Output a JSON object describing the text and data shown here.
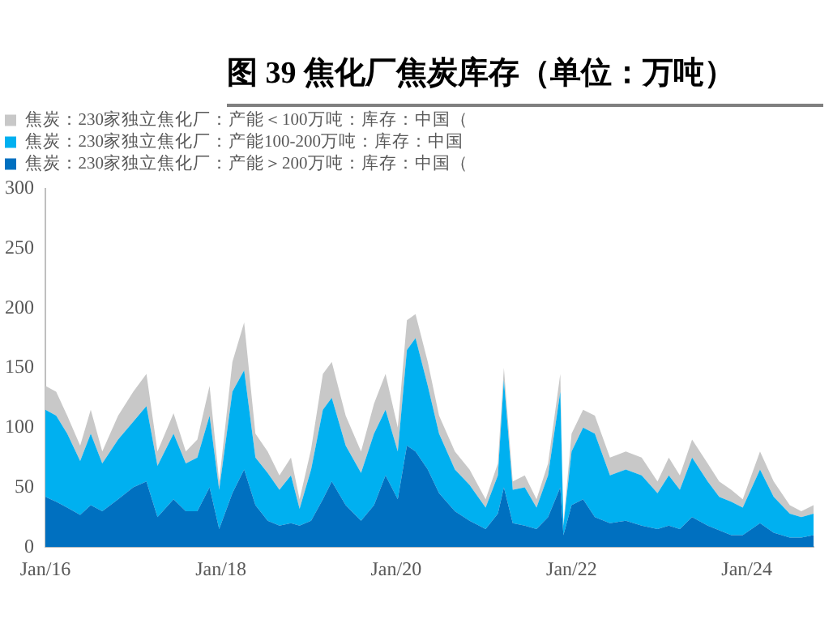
{
  "chart_data": {
    "type": "area",
    "title": "图 39 焦化厂焦炭库存（单位：万吨）",
    "stacked": true,
    "legend": "top",
    "x": [
      "2016-01-01",
      "2016-02-15",
      "2016-04-01",
      "2016-05-25",
      "2016-07-08",
      "2016-08-25",
      "2016-10-30",
      "2017-01-01",
      "2017-02-25",
      "2017-04-12",
      "2017-06-18",
      "2017-08-08",
      "2017-09-25",
      "2017-11-15",
      "2017-12-25",
      "2018-02-18",
      "2018-04-08",
      "2018-05-25",
      "2018-07-15",
      "2018-09-02",
      "2018-10-20",
      "2018-11-25",
      "2019-01-12",
      "2019-03-02",
      "2019-04-08",
      "2019-06-05",
      "2019-08-08",
      "2019-10-01",
      "2019-11-18",
      "2020-01-08",
      "2020-02-15",
      "2020-03-22",
      "2020-05-12",
      "2020-06-28",
      "2020-09-02",
      "2020-11-02",
      "2021-01-08",
      "2021-02-28",
      "2021-03-25",
      "2021-05-01",
      "2021-06-20",
      "2021-08-08",
      "2021-09-25",
      "2021-11-15",
      "2021-11-28",
      "2022-01-01",
      "2022-02-18",
      "2022-04-08",
      "2022-06-10",
      "2022-08-15",
      "2022-10-20",
      "2022-12-25",
      "2023-02-10",
      "2023-03-28",
      "2023-05-18",
      "2023-07-22",
      "2023-09-08",
      "2023-10-28",
      "2023-12-15",
      "2024-02-25",
      "2024-04-22",
      "2024-06-28",
      "2024-08-15",
      "2024-10-05"
    ],
    "series": [
      {
        "name": "焦炭：230家独立焦化厂：产能＞200万吨：库存：中国（",
        "color": "#0070c0",
        "values": [
          42,
          38,
          33,
          27,
          35,
          30,
          40,
          50,
          55,
          25,
          40,
          30,
          30,
          50,
          15,
          45,
          65,
          35,
          22,
          18,
          20,
          18,
          22,
          40,
          55,
          35,
          22,
          35,
          60,
          40,
          85,
          80,
          65,
          45,
          30,
          22,
          15,
          28,
          50,
          20,
          18,
          15,
          25,
          50,
          10,
          35,
          40,
          25,
          20,
          22,
          18,
          15,
          18,
          15,
          25,
          18,
          14,
          10,
          10,
          20,
          12,
          8,
          8,
          10
        ]
      },
      {
        "name": "焦炭：230家独立焦化厂：产能100-200万吨：库存：中国",
        "color": "#00b0f0",
        "values": [
          73,
          72,
          62,
          45,
          60,
          40,
          50,
          55,
          63,
          43,
          55,
          40,
          45,
          60,
          33,
          85,
          83,
          40,
          40,
          30,
          40,
          14,
          43,
          75,
          70,
          50,
          40,
          60,
          55,
          40,
          80,
          95,
          70,
          50,
          35,
          30,
          18,
          32,
          90,
          28,
          32,
          18,
          35,
          80,
          8,
          45,
          60,
          70,
          40,
          43,
          42,
          30,
          42,
          33,
          50,
          37,
          28,
          28,
          23,
          45,
          30,
          20,
          17,
          18
        ]
      },
      {
        "name": "焦炭：230家独立焦化厂：产能＜100万吨：库存：中国（",
        "color": "#c8c8c8",
        "values": [
          20,
          20,
          15,
          13,
          20,
          10,
          20,
          25,
          27,
          12,
          17,
          10,
          15,
          25,
          7,
          25,
          40,
          20,
          18,
          12,
          15,
          8,
          17,
          30,
          30,
          25,
          18,
          25,
          30,
          20,
          25,
          20,
          20,
          15,
          15,
          13,
          7,
          10,
          10,
          7,
          10,
          7,
          10,
          15,
          2,
          15,
          15,
          15,
          15,
          15,
          15,
          10,
          15,
          12,
          15,
          15,
          13,
          10,
          7,
          15,
          13,
          7,
          5,
          7
        ]
      }
    ],
    "xlim": [
      "2016-01-01",
      "2024-10-05"
    ],
    "xticks": [
      {
        "value": "2016-01-01",
        "label": "Jan/16"
      },
      {
        "value": "2018-01-01",
        "label": "Jan/18"
      },
      {
        "value": "2020-01-01",
        "label": "Jan/20"
      },
      {
        "value": "2022-01-01",
        "label": "Jan/22"
      },
      {
        "value": "2024-01-01",
        "label": "Jan/24"
      }
    ],
    "ylim": [
      0,
      300
    ],
    "yticks": [
      0,
      50,
      100,
      150,
      200,
      250,
      300
    ]
  }
}
